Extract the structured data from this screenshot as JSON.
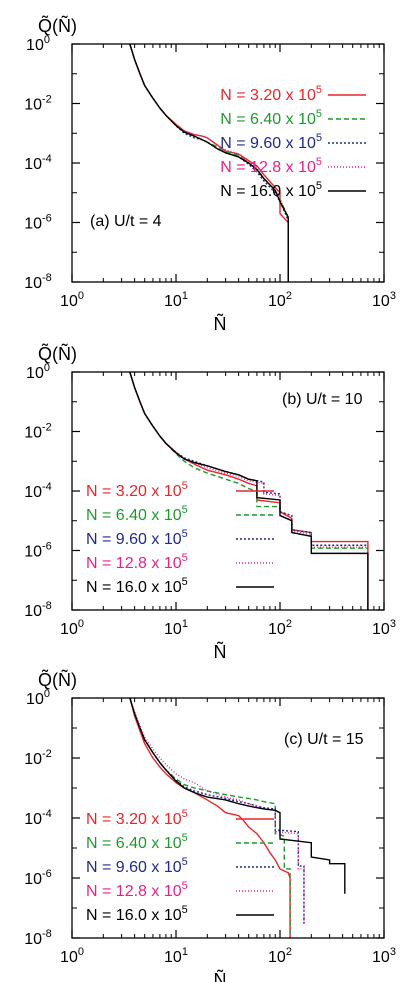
{
  "figure": {
    "y_axis_label": "Q̃(Ñ)",
    "x_axis_label": "Ñ"
  },
  "chart_data": [
    {
      "type": "line",
      "panel_label": "(a) U/t = 4",
      "xlabel": "Ñ",
      "ylabel": "Q̃(Ñ)",
      "x_scale": "log",
      "y_scale": "log",
      "xlim": [
        1,
        1000
      ],
      "ylim": [
        1e-08,
        1
      ],
      "x_ticks": [
        {
          "base": "10",
          "exp": "0",
          "value": 1
        },
        {
          "base": "10",
          "exp": "1",
          "value": 10
        },
        {
          "base": "10",
          "exp": "2",
          "value": 100
        },
        {
          "base": "10",
          "exp": "3",
          "value": 1000
        }
      ],
      "y_ticks": [
        {
          "base": "10",
          "exp": "0",
          "value": 1
        },
        {
          "base": "10",
          "exp": "-2",
          "value": 0.01
        },
        {
          "base": "10",
          "exp": "-4",
          "value": 0.0001
        },
        {
          "base": "10",
          "exp": "-6",
          "value": 1e-06
        },
        {
          "base": "10",
          "exp": "-8",
          "value": 1e-08
        }
      ],
      "legend_position": "top-right",
      "series": [
        {
          "name": "N = 3.20 x 10^5",
          "label": "N = 3.20 x 10",
          "exp": "5",
          "color": "#e8262a",
          "dash": "",
          "x": [
            3.6,
            4.0,
            4.5,
            5.0,
            6.0,
            7.0,
            8.0,
            10.0,
            12.0,
            15.0,
            18.0,
            20.0,
            25.0,
            30.0,
            40.0,
            50.0,
            60.0,
            70.0,
            90.0,
            100.0,
            100.0,
            120.0,
            120.0
          ],
          "y": [
            1.0,
            0.3,
            0.1,
            0.04,
            0.015,
            0.007,
            0.004,
            0.002,
            0.0012,
            0.0009,
            0.0008,
            0.0007,
            0.0004,
            0.00025,
            0.0002,
            0.00012,
            8e-05,
            4e-05,
            1.5e-05,
            1e-05,
            2e-06,
            1e-06,
            1e-08
          ]
        },
        {
          "name": "N = 6.40 x 10^5",
          "label": "N = 6.40 x 10",
          "exp": "5",
          "color": "#1f9a2e",
          "dash": "5,3",
          "x": [
            3.6,
            4.0,
            4.5,
            5.0,
            6.0,
            7.0,
            8.0,
            10.0,
            12.0,
            15.0,
            18.0,
            20.0,
            25.0,
            30.0,
            40.0,
            50.0,
            60.0,
            70.0,
            90.0,
            100.0,
            120.0,
            120.0
          ],
          "y": [
            1.0,
            0.3,
            0.1,
            0.04,
            0.015,
            0.007,
            0.004,
            0.0018,
            0.0011,
            0.0008,
            0.0006,
            0.0005,
            0.00035,
            0.00025,
            0.00018,
            0.0001,
            6e-05,
            3e-05,
            1.2e-05,
            6e-06,
            1.5e-06,
            1e-08
          ]
        },
        {
          "name": "N = 9.60 x 10^5",
          "label": "N = 9.60 x 10",
          "exp": "5",
          "color": "#1f2a8a",
          "dash": "2,2",
          "x": [
            3.6,
            4.0,
            4.5,
            5.0,
            6.0,
            7.0,
            8.0,
            10.0,
            12.0,
            15.0,
            18.0,
            20.0,
            25.0,
            30.0,
            40.0,
            50.0,
            60.0,
            70.0,
            90.0,
            100.0,
            120.0,
            120.0
          ],
          "y": [
            1.0,
            0.3,
            0.1,
            0.04,
            0.015,
            0.007,
            0.004,
            0.0018,
            0.001,
            0.0007,
            0.0006,
            0.0005,
            0.0003,
            0.00022,
            0.00016,
            9e-05,
            5e-05,
            2.5e-05,
            1e-05,
            5e-06,
            1.2e-06,
            1e-08
          ]
        },
        {
          "name": "N = 12.8 x 10^5",
          "label": "N = 12.8 x 10",
          "exp": "5",
          "color": "#e8208a",
          "dash": "1,2",
          "x": [
            3.6,
            4.0,
            4.5,
            5.0,
            6.0,
            7.0,
            8.0,
            10.0,
            12.0,
            15.0,
            18.0,
            20.0,
            25.0,
            30.0,
            40.0,
            50.0,
            60.0,
            70.0,
            90.0,
            100.0,
            120.0,
            120.0
          ],
          "y": [
            1.0,
            0.3,
            0.1,
            0.04,
            0.015,
            0.007,
            0.004,
            0.0019,
            0.0012,
            0.0009,
            0.0008,
            0.0007,
            0.0004,
            0.00028,
            0.0002,
            0.00011,
            7e-05,
            3e-05,
            1.2e-05,
            6e-06,
            1.5e-06,
            1e-08
          ]
        },
        {
          "name": "N = 16.0 x 10^5",
          "label": "N = 16.0 x 10",
          "exp": "5",
          "color": "#000000",
          "dash": "",
          "x": [
            3.6,
            4.0,
            4.5,
            5.0,
            6.0,
            7.0,
            8.0,
            10.0,
            12.0,
            15.0,
            18.0,
            20.0,
            25.0,
            30.0,
            40.0,
            50.0,
            60.0,
            70.0,
            90.0,
            100.0,
            120.0,
            120.0
          ],
          "y": [
            1.0,
            0.3,
            0.1,
            0.04,
            0.015,
            0.007,
            0.004,
            0.0018,
            0.0011,
            0.0008,
            0.0006,
            0.0005,
            0.0003,
            0.00022,
            0.00016,
            0.0001,
            6e-05,
            3e-05,
            1.2e-05,
            5e-06,
            1.5e-06,
            1e-08
          ]
        }
      ]
    },
    {
      "type": "line",
      "panel_label": "(b) U/t = 10",
      "xlabel": "Ñ",
      "ylabel": "Q̃(Ñ)",
      "x_scale": "log",
      "y_scale": "log",
      "xlim": [
        1,
        1000
      ],
      "ylim": [
        1e-08,
        1
      ],
      "x_ticks": [
        {
          "base": "10",
          "exp": "0",
          "value": 1
        },
        {
          "base": "10",
          "exp": "1",
          "value": 10
        },
        {
          "base": "10",
          "exp": "2",
          "value": 100
        },
        {
          "base": "10",
          "exp": "3",
          "value": 1000
        }
      ],
      "y_ticks": [
        {
          "base": "10",
          "exp": "0",
          "value": 1
        },
        {
          "base": "10",
          "exp": "-2",
          "value": 0.01
        },
        {
          "base": "10",
          "exp": "-4",
          "value": 0.0001
        },
        {
          "base": "10",
          "exp": "-6",
          "value": 1e-06
        },
        {
          "base": "10",
          "exp": "-8",
          "value": 1e-08
        }
      ],
      "legend_position": "bottom-left",
      "series": [
        {
          "name": "N = 3.20 x 10^5",
          "label": "N = 3.20 x 10",
          "exp": "5",
          "color": "#e8262a",
          "dash": "",
          "x": [
            3.6,
            4.0,
            4.5,
            5.0,
            6.0,
            7.0,
            8.0,
            10.0,
            12.0,
            15.0,
            20.0,
            30.0,
            40.0,
            50.0,
            60.0,
            60.0,
            100.0,
            100.0,
            130.0,
            130.0,
            200.0,
            200.0,
            700.0,
            700.0
          ],
          "y": [
            1.0,
            0.3,
            0.1,
            0.04,
            0.015,
            0.007,
            0.004,
            0.002,
            0.0012,
            0.0008,
            0.0005,
            0.00035,
            0.00025,
            0.00018,
            0.00015,
            5e-05,
            4e-05,
            2e-05,
            1.2e-05,
            5e-06,
            4e-06,
            2e-06,
            2e-06,
            1e-08
          ]
        },
        {
          "name": "N = 6.40 x 10^5",
          "label": "N = 6.40 x 10",
          "exp": "5",
          "color": "#1f9a2e",
          "dash": "5,3",
          "x": [
            3.6,
            4.0,
            4.5,
            5.0,
            6.0,
            7.0,
            8.0,
            10.0,
            12.0,
            15.0,
            20.0,
            30.0,
            40.0,
            50.0,
            60.0,
            60.0,
            100.0,
            100.0,
            130.0,
            130.0,
            200.0,
            200.0,
            700.0
          ],
          "y": [
            1.0,
            0.3,
            0.1,
            0.04,
            0.015,
            0.007,
            0.004,
            0.0018,
            0.001,
            0.0006,
            0.0004,
            0.00025,
            0.00018,
            0.00012,
            0.0001,
            3e-05,
            3e-05,
            1.5e-05,
            1e-05,
            4e-06,
            3e-06,
            1.2e-06,
            1.2e-06
          ]
        },
        {
          "name": "N = 9.60 x 10^5",
          "label": "N = 9.60 x 10",
          "exp": "5",
          "color": "#1f2a8a",
          "dash": "2,2",
          "x": [
            3.6,
            4.0,
            4.5,
            5.0,
            6.0,
            7.0,
            8.0,
            10.0,
            12.0,
            15.0,
            20.0,
            30.0,
            40.0,
            50.0,
            70.0,
            70.0,
            100.0,
            100.0,
            130.0,
            130.0,
            200.0,
            200.0,
            700.0
          ],
          "y": [
            1.0,
            0.3,
            0.1,
            0.04,
            0.015,
            0.007,
            0.004,
            0.002,
            0.0013,
            0.001,
            0.0007,
            0.00045,
            0.00035,
            0.00025,
            0.0002,
            9e-05,
            8e-05,
            2e-05,
            1.5e-05,
            5e-06,
            4e-06,
            1.5e-06,
            1.5e-06
          ]
        },
        {
          "name": "N = 12.8 x 10^5",
          "label": "N = 12.8 x 10",
          "exp": "5",
          "color": "#e8208a",
          "dash": "1,2",
          "x": [
            3.6,
            4.0,
            4.5,
            5.0,
            6.0,
            7.0,
            8.0,
            10.0,
            12.0,
            15.0,
            20.0,
            30.0,
            40.0,
            50.0,
            70.0,
            70.0,
            100.0,
            100.0,
            130.0,
            130.0,
            200.0,
            200.0,
            700.0
          ],
          "y": [
            1.0,
            0.3,
            0.1,
            0.04,
            0.015,
            0.007,
            0.004,
            0.0019,
            0.0012,
            0.0009,
            0.0006,
            0.0004,
            0.0003,
            0.00022,
            0.00018,
            8e-05,
            7e-05,
            2e-05,
            1.4e-05,
            4.5e-06,
            3.5e-06,
            1.3e-06,
            1.3e-06
          ]
        },
        {
          "name": "N = 16.0 x 10^5",
          "label": "N = 16.0 x 10",
          "exp": "5",
          "color": "#000000",
          "dash": "",
          "x": [
            3.6,
            4.0,
            4.5,
            5.0,
            6.0,
            7.0,
            8.0,
            10.0,
            12.0,
            15.0,
            20.0,
            30.0,
            40.0,
            50.0,
            60.0,
            60.0,
            100.0,
            100.0,
            130.0,
            130.0,
            200.0,
            200.0,
            700.0,
            700.0
          ],
          "y": [
            1.0,
            0.3,
            0.1,
            0.04,
            0.015,
            0.007,
            0.004,
            0.0019,
            0.0012,
            0.0009,
            0.0007,
            0.00045,
            0.00035,
            0.00025,
            0.00022,
            6e-05,
            5e-05,
            1.5e-05,
            1e-05,
            4e-06,
            3e-06,
            8e-07,
            8e-07,
            1e-08
          ]
        }
      ]
    },
    {
      "type": "line",
      "panel_label": "(c) U/t = 15",
      "xlabel": "Ñ",
      "ylabel": "Q̃(Ñ)",
      "x_scale": "log",
      "y_scale": "log",
      "xlim": [
        1,
        1000
      ],
      "ylim": [
        1e-08,
        1
      ],
      "x_ticks": [
        {
          "base": "10",
          "exp": "0",
          "value": 1
        },
        {
          "base": "10",
          "exp": "1",
          "value": 10
        },
        {
          "base": "10",
          "exp": "2",
          "value": 100
        },
        {
          "base": "10",
          "exp": "3",
          "value": 1000
        }
      ],
      "y_ticks": [
        {
          "base": "10",
          "exp": "0",
          "value": 1
        },
        {
          "base": "10",
          "exp": "-2",
          "value": 0.01
        },
        {
          "base": "10",
          "exp": "-4",
          "value": 0.0001
        },
        {
          "base": "10",
          "exp": "-6",
          "value": 1e-06
        },
        {
          "base": "10",
          "exp": "-8",
          "value": 1e-08
        }
      ],
      "legend_position": "bottom-left",
      "series": [
        {
          "name": "N = 3.20 x 10^5",
          "label": "N = 3.20 x 10",
          "exp": "5",
          "color": "#e8262a",
          "dash": "",
          "x": [
            3.6,
            4.0,
            4.5,
            5.0,
            6.0,
            7.0,
            8.0,
            10.0,
            12.0,
            15.0,
            20.0,
            25.0,
            30.0,
            40.0,
            45.0,
            50.0,
            60.0,
            70.0,
            80.0,
            90.0,
            100.0,
            120.0,
            125.0,
            125.0
          ],
          "y": [
            1.0,
            0.25,
            0.08,
            0.03,
            0.01,
            0.005,
            0.003,
            0.0015,
            0.001,
            0.0007,
            0.0004,
            0.00025,
            0.00015,
            0.00012,
            8e-05,
            5e-05,
            3e-05,
            1.5e-05,
            7e-06,
            4e-06,
            2e-06,
            1.5e-06,
            1e-06,
            1e-08
          ]
        },
        {
          "name": "N = 6.40 x 10^5",
          "label": "N = 6.40 x 10",
          "exp": "5",
          "color": "#1f9a2e",
          "dash": "5,3",
          "x": [
            3.6,
            4.0,
            4.5,
            5.0,
            6.0,
            7.0,
            8.0,
            10.0,
            12.0,
            15.0,
            20.0,
            30.0,
            40.0,
            50.0,
            60.0,
            70.0,
            90.0,
            90.0,
            110.0,
            110.0,
            125.0,
            125.0
          ],
          "y": [
            1.0,
            0.3,
            0.1,
            0.04,
            0.015,
            0.007,
            0.004,
            0.002,
            0.0013,
            0.001,
            0.0008,
            0.0006,
            0.0005,
            0.00045,
            0.0004,
            0.00035,
            0.0003,
            3e-05,
            2.5e-05,
            2e-06,
            2e-06,
            1e-08
          ]
        },
        {
          "name": "N = 9.60 x 10^5",
          "label": "N = 9.60 x 10",
          "exp": "5",
          "color": "#1f2a8a",
          "dash": "2,2",
          "x": [
            3.6,
            4.0,
            4.5,
            5.0,
            6.0,
            7.0,
            8.0,
            10.0,
            12.0,
            15.0,
            20.0,
            30.0,
            40.0,
            50.0,
            60.0,
            70.0,
            90.0,
            90.0,
            150.0,
            150.0,
            170.0,
            170.0
          ],
          "y": [
            1.0,
            0.3,
            0.1,
            0.04,
            0.015,
            0.007,
            0.004,
            0.0018,
            0.0011,
            0.0008,
            0.0006,
            0.00045,
            0.00035,
            0.0003,
            0.00025,
            0.00022,
            0.0002,
            4e-05,
            3.5e-05,
            2.5e-06,
            2.5e-06,
            3e-08
          ]
        },
        {
          "name": "N = 12.8 x 10^5",
          "label": "N = 12.8 x 10",
          "exp": "5",
          "color": "#e8208a",
          "dash": "1,2",
          "x": [
            3.6,
            4.0,
            4.5,
            5.0,
            6.0,
            7.0,
            8.0,
            10.0,
            12.0,
            15.0,
            20.0,
            30.0,
            40.0,
            50.0,
            60.0,
            70.0,
            90.0,
            90.0,
            150.0,
            150.0,
            170.0,
            170.0
          ],
          "y": [
            1.0,
            0.35,
            0.12,
            0.05,
            0.02,
            0.01,
            0.006,
            0.003,
            0.002,
            0.0015,
            0.0008,
            0.0005,
            0.0004,
            0.0003,
            0.00025,
            0.0002,
            0.00018,
            3.5e-05,
            3e-05,
            2e-06,
            2e-06,
            3e-08
          ]
        },
        {
          "name": "N = 16.0 x 10^5",
          "label": "N = 16.0 x 10",
          "exp": "5",
          "color": "#000000",
          "dash": "",
          "x": [
            3.6,
            4.0,
            4.5,
            5.0,
            6.0,
            7.0,
            8.0,
            10.0,
            12.0,
            15.0,
            20.0,
            30.0,
            40.0,
            50.0,
            60.0,
            70.0,
            90.0,
            100.0,
            100.0,
            200.0,
            200.0,
            300.0,
            300.0,
            420.0,
            420.0
          ],
          "y": [
            1.0,
            0.3,
            0.1,
            0.04,
            0.015,
            0.007,
            0.004,
            0.0017,
            0.001,
            0.0007,
            0.0005,
            0.0004,
            0.0003,
            0.00025,
            0.00022,
            0.0002,
            0.00018,
            0.00015,
            2e-05,
            1.5e-05,
            5e-06,
            4e-06,
            3e-06,
            3e-06,
            3e-07
          ]
        }
      ]
    }
  ]
}
